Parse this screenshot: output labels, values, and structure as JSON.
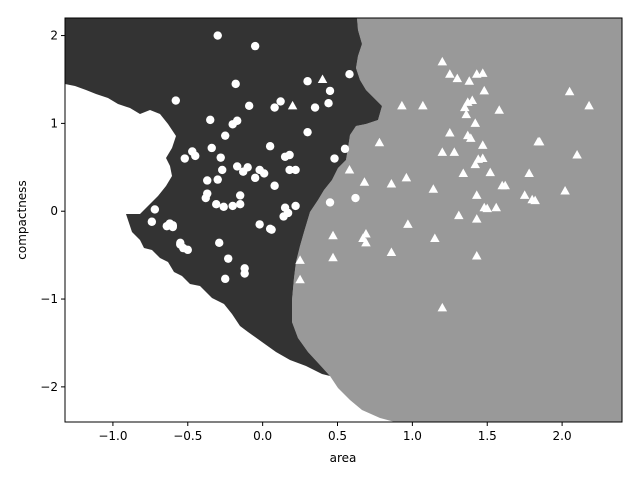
{
  "chart_data": {
    "type": "scatter",
    "title": "",
    "xlabel": "area",
    "ylabel": "compactness",
    "xlim": [
      -1.32,
      2.4
    ],
    "ylim": [
      -2.4,
      2.2
    ],
    "xticks": [
      -1.0,
      -0.5,
      0.0,
      0.5,
      1.0,
      1.5,
      2.0
    ],
    "xtick_labels": [
      "−1.0",
      "−0.5",
      "0.0",
      "0.5",
      "1.0",
      "1.5",
      "2.0"
    ],
    "yticks": [
      -2,
      -1,
      0,
      1,
      2
    ],
    "ytick_labels": [
      "−2",
      "−1",
      "0",
      "1",
      "2"
    ],
    "grid": false,
    "legend": false,
    "background": {
      "description": "decision regions of a classifier",
      "region_colors": {
        "class_0": "#333333",
        "class_1": "#999999",
        "class_2": "#ffffff"
      }
    },
    "series": [
      {
        "marker": "circle",
        "color": "#ffffff",
        "points": [
          [
            -0.3,
            2.0
          ],
          [
            -0.05,
            1.88
          ],
          [
            -0.58,
            1.26
          ],
          [
            -0.18,
            1.45
          ],
          [
            0.12,
            1.25
          ],
          [
            0.08,
            1.18
          ],
          [
            0.3,
            1.48
          ],
          [
            0.35,
            1.18
          ],
          [
            0.45,
            1.37
          ],
          [
            0.44,
            1.23
          ],
          [
            0.58,
            1.56
          ],
          [
            -0.35,
            1.04
          ],
          [
            -0.2,
            0.99
          ],
          [
            -0.17,
            1.03
          ],
          [
            -0.25,
            0.86
          ],
          [
            -0.28,
            0.61
          ],
          [
            -0.45,
            0.63
          ],
          [
            -0.47,
            0.68
          ],
          [
            -0.52,
            0.6
          ],
          [
            -0.09,
            1.2
          ],
          [
            0.3,
            0.9
          ],
          [
            0.48,
            0.6
          ],
          [
            0.55,
            0.71
          ],
          [
            0.18,
            0.64
          ],
          [
            0.15,
            0.62
          ],
          [
            0.05,
            0.74
          ],
          [
            -0.34,
            0.72
          ],
          [
            -0.37,
            0.35
          ],
          [
            -0.37,
            0.2
          ],
          [
            -0.38,
            0.15
          ],
          [
            -0.3,
            0.36
          ],
          [
            -0.27,
            0.47
          ],
          [
            -0.17,
            0.51
          ],
          [
            -0.13,
            0.45
          ],
          [
            -0.1,
            0.5
          ],
          [
            -0.05,
            0.38
          ],
          [
            -0.02,
            0.47
          ],
          [
            0.01,
            0.43
          ],
          [
            0.08,
            0.29
          ],
          [
            0.18,
            0.47
          ],
          [
            0.22,
            0.47
          ],
          [
            0.45,
            0.1
          ],
          [
            0.62,
            0.15
          ],
          [
            -0.31,
            0.08
          ],
          [
            -0.26,
            0.05
          ],
          [
            -0.2,
            0.06
          ],
          [
            -0.15,
            0.08
          ],
          [
            -0.15,
            0.18
          ],
          [
            0.15,
            0.04
          ],
          [
            0.17,
            -0.02
          ],
          [
            0.14,
            -0.06
          ],
          [
            0.22,
            0.06
          ],
          [
            -0.02,
            -0.15
          ],
          [
            0.06,
            -0.21
          ],
          [
            0.05,
            -0.2
          ],
          [
            -0.72,
            0.02
          ],
          [
            -0.62,
            -0.14
          ],
          [
            -0.6,
            -0.16
          ],
          [
            -0.64,
            -0.17
          ],
          [
            -0.6,
            -0.18
          ],
          [
            -0.55,
            -0.36
          ],
          [
            -0.55,
            -0.38
          ],
          [
            -0.53,
            -0.42
          ],
          [
            -0.5,
            -0.44
          ],
          [
            -0.29,
            -0.36
          ],
          [
            -0.23,
            -0.54
          ],
          [
            -0.25,
            -0.77
          ],
          [
            -0.12,
            -0.65
          ],
          [
            -0.12,
            -0.71
          ],
          [
            -0.74,
            -0.12
          ]
        ]
      },
      {
        "marker": "triangle",
        "color": "#ffffff",
        "points": [
          [
            0.2,
            1.2
          ],
          [
            0.4,
            1.5
          ],
          [
            1.2,
            1.7
          ],
          [
            1.25,
            1.56
          ],
          [
            1.3,
            1.51
          ],
          [
            1.47,
            1.57
          ],
          [
            1.43,
            1.56
          ],
          [
            1.38,
            1.48
          ],
          [
            1.48,
            1.37
          ],
          [
            1.4,
            1.26
          ],
          [
            1.37,
            1.24
          ],
          [
            1.35,
            1.18
          ],
          [
            1.36,
            1.1
          ],
          [
            1.42,
            1.0
          ],
          [
            1.58,
            1.15
          ],
          [
            1.07,
            1.2
          ],
          [
            0.93,
            1.2
          ],
          [
            0.78,
            0.78
          ],
          [
            1.25,
            0.89
          ],
          [
            1.37,
            0.86
          ],
          [
            1.39,
            0.83
          ],
          [
            1.47,
            0.75
          ],
          [
            1.44,
            0.59
          ],
          [
            1.47,
            0.6
          ],
          [
            1.28,
            0.67
          ],
          [
            1.2,
            0.67
          ],
          [
            1.34,
            0.43
          ],
          [
            1.52,
            0.44
          ],
          [
            1.42,
            0.53
          ],
          [
            0.58,
            0.47
          ],
          [
            0.68,
            0.33
          ],
          [
            0.86,
            0.31
          ],
          [
            0.96,
            0.38
          ],
          [
            1.14,
            0.25
          ],
          [
            1.6,
            0.29
          ],
          [
            1.62,
            0.29
          ],
          [
            1.78,
            0.43
          ],
          [
            1.75,
            0.18
          ],
          [
            1.8,
            0.13
          ],
          [
            1.82,
            0.12
          ],
          [
            2.05,
            1.36
          ],
          [
            2.18,
            1.2
          ],
          [
            1.85,
            0.79
          ],
          [
            1.84,
            0.79
          ],
          [
            2.1,
            0.64
          ],
          [
            2.02,
            0.23
          ],
          [
            1.43,
            0.18
          ],
          [
            1.48,
            0.04
          ],
          [
            1.5,
            0.03
          ],
          [
            1.56,
            0.04
          ],
          [
            1.31,
            -0.05
          ],
          [
            1.43,
            -0.09
          ],
          [
            0.47,
            -0.28
          ],
          [
            0.67,
            -0.31
          ],
          [
            0.69,
            -0.26
          ],
          [
            0.69,
            -0.36
          ],
          [
            0.97,
            -0.15
          ],
          [
            0.25,
            -0.56
          ],
          [
            0.47,
            -0.53
          ],
          [
            0.86,
            -0.47
          ],
          [
            1.15,
            -0.31
          ],
          [
            1.43,
            -0.51
          ],
          [
            1.2,
            -1.1
          ],
          [
            0.25,
            -0.78
          ]
        ]
      }
    ]
  }
}
